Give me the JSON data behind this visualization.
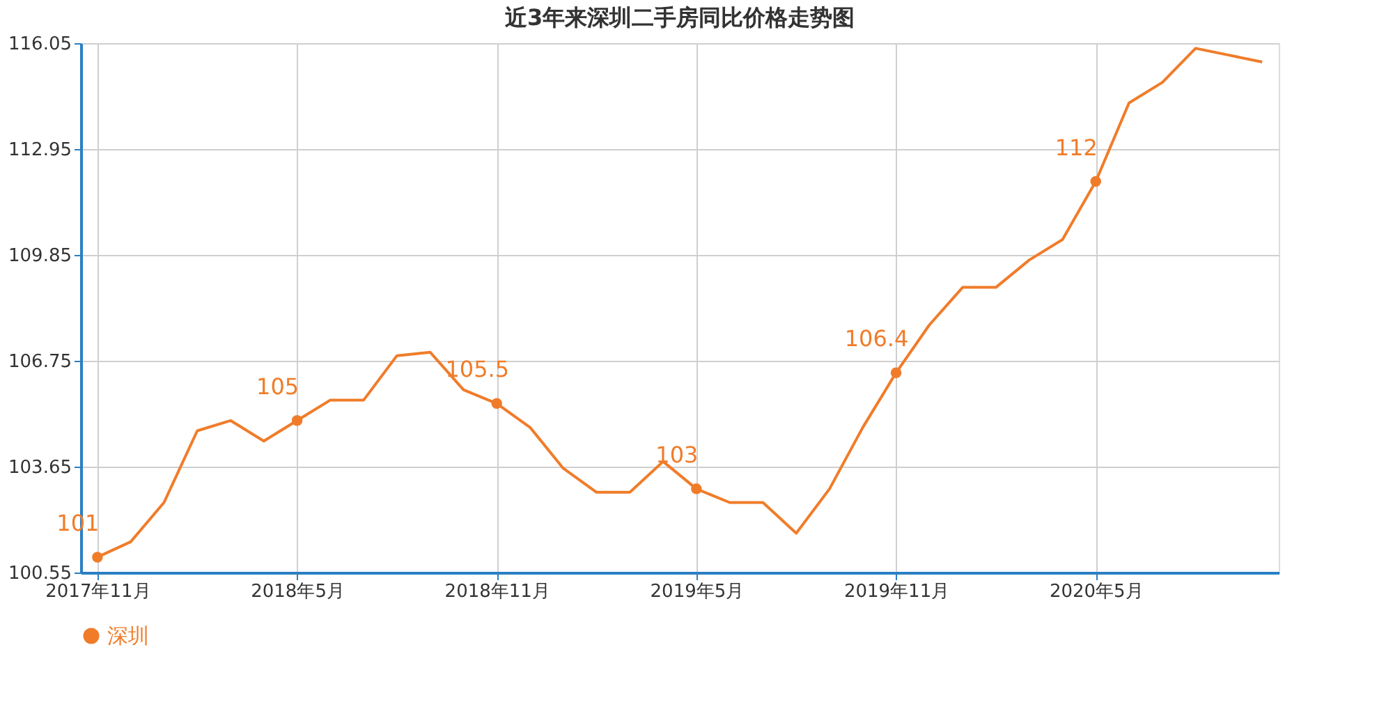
{
  "chart_data": {
    "type": "line",
    "title": "近3年来深圳二手房同比价格走势图",
    "categories": [
      "2017年11月",
      null,
      null,
      null,
      null,
      null,
      "2018年5月",
      null,
      null,
      null,
      null,
      null,
      "2018年11月",
      null,
      null,
      null,
      null,
      null,
      "2019年5月",
      null,
      null,
      null,
      null,
      null,
      "2019年11月",
      null,
      null,
      null,
      null,
      null,
      "2020年5月",
      null,
      null,
      null,
      null,
      null
    ],
    "series": [
      {
        "name": "深圳",
        "color": "#f07c2a",
        "values": [
          101.0,
          101.45,
          102.6,
          104.7,
          105.0,
          104.4,
          105.0,
          105.6,
          105.6,
          106.9,
          107.0,
          105.9,
          105.5,
          104.8,
          103.6,
          102.9,
          102.9,
          103.8,
          103.0,
          102.6,
          102.6,
          101.7,
          103.0,
          104.8,
          106.4,
          107.8,
          108.9,
          108.9,
          109.7,
          110.3,
          112.0,
          114.3,
          114.9,
          115.9,
          115.7,
          115.5
        ],
        "value_labels": [
          "101",
          null,
          null,
          null,
          null,
          null,
          "105",
          null,
          null,
          null,
          null,
          null,
          "105.5",
          null,
          null,
          null,
          null,
          null,
          "103",
          null,
          null,
          null,
          null,
          null,
          "106.4",
          null,
          null,
          null,
          null,
          null,
          "112",
          null,
          null,
          null,
          null,
          null
        ]
      }
    ],
    "ylim": [
      100.55,
      116.05
    ],
    "yticks": [
      100.55,
      103.65,
      106.75,
      109.85,
      112.95,
      116.05
    ],
    "grid": true,
    "legend": "bottom",
    "line_style": "solid"
  }
}
